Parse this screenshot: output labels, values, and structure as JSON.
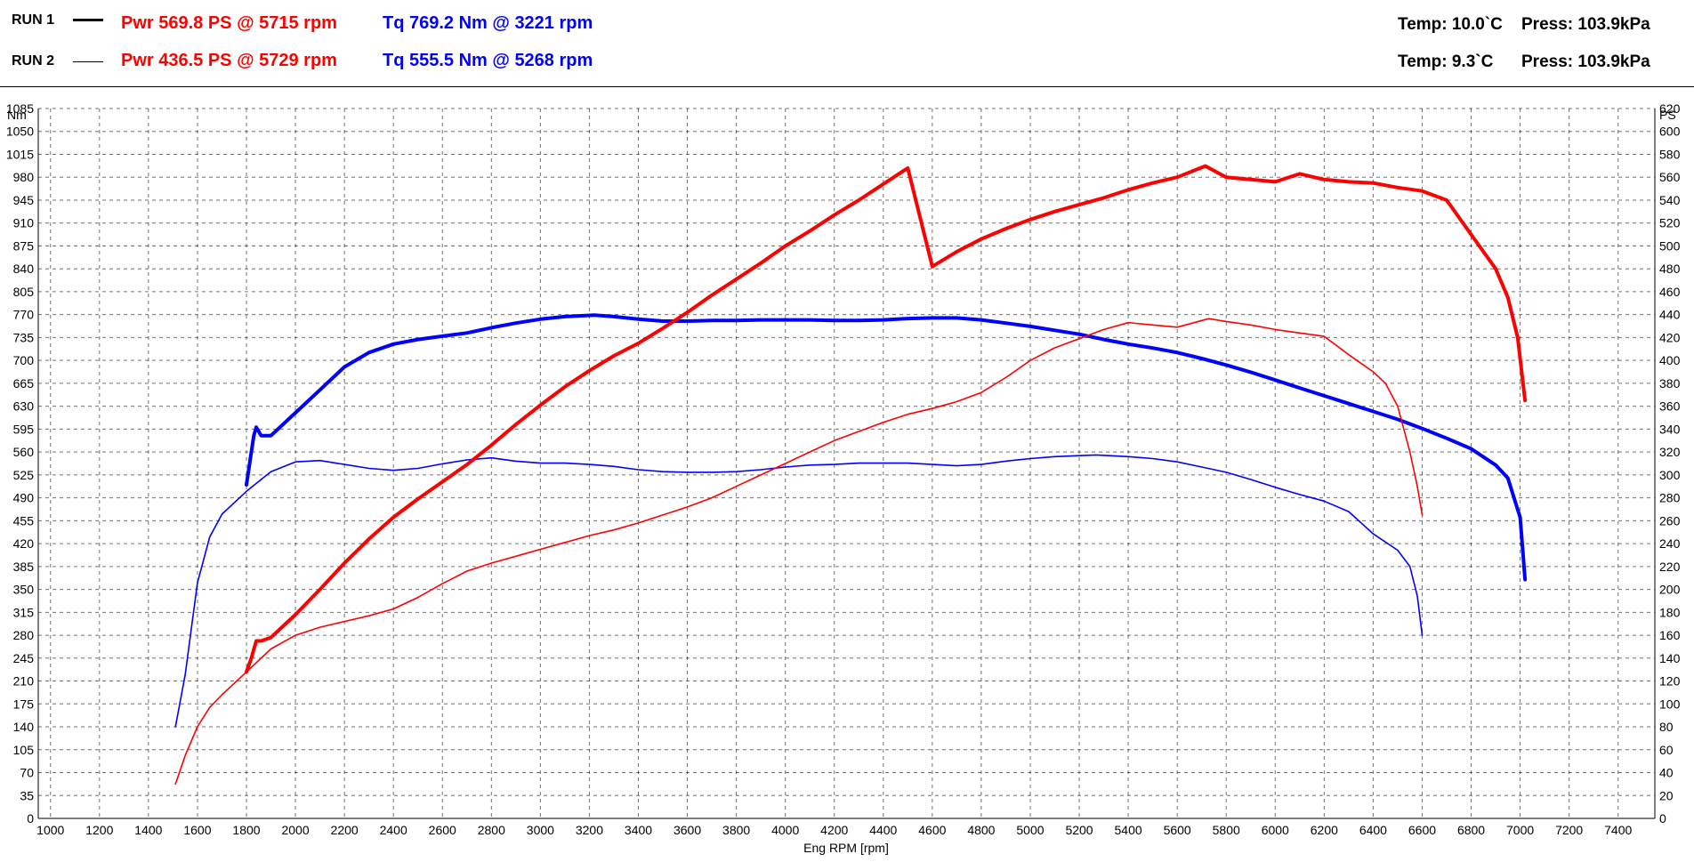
{
  "header": {
    "runs": [
      {
        "label": "RUN 1",
        "power": "Pwr  569.8 PS @ 5715 rpm",
        "torque": "Tq 769.2 Nm @ 3221 rpm",
        "temp": "Temp: 10.0`C",
        "press": "Press: 103.9kPa",
        "line_style": "thick"
      },
      {
        "label": "RUN 2",
        "power": "Pwr  436.5 PS @ 5729 rpm",
        "torque": "Tq 555.5 Nm @ 5268 rpm",
        "temp": "Temp: 9.3`C",
        "press": "Press: 103.9kPa",
        "line_style": "thin"
      }
    ]
  },
  "colors": {
    "power": "#ff0000",
    "torque": "#0000ff",
    "grid": "#000000",
    "background": "#ffffff"
  },
  "chart_data": {
    "type": "line",
    "xlabel": "Eng RPM [rpm]",
    "ylabel_left": "Nm",
    "ylabel_right": "PS",
    "xlim": [
      950,
      7550
    ],
    "ylim_left": [
      0,
      1085
    ],
    "ylim_right": [
      0,
      620
    ],
    "x_ticks": [
      1000,
      1200,
      1400,
      1600,
      1800,
      2000,
      2200,
      2400,
      2600,
      2800,
      3000,
      3200,
      3400,
      3600,
      3800,
      4000,
      4200,
      4400,
      4600,
      4800,
      5000,
      5200,
      5400,
      5600,
      5800,
      6000,
      6200,
      6400,
      6600,
      6800,
      7000,
      7200,
      7400
    ],
    "y_ticks_left": [
      0,
      35,
      70,
      105,
      140,
      175,
      210,
      245,
      280,
      315,
      350,
      385,
      420,
      455,
      490,
      525,
      560,
      595,
      630,
      665,
      700,
      735,
      770,
      805,
      840,
      875,
      910,
      945,
      980,
      1015,
      1050,
      1085
    ],
    "y_ticks_right": [
      0,
      20,
      40,
      60,
      80,
      100,
      120,
      140,
      160,
      180,
      200,
      220,
      240,
      260,
      280,
      300,
      320,
      340,
      360,
      380,
      400,
      420,
      440,
      460,
      480,
      500,
      520,
      540,
      560,
      580,
      600,
      620
    ],
    "grid": true,
    "series": [
      {
        "name": "RUN 1",
        "quantity": "torque",
        "axis": "left",
        "width": "thick",
        "points": [
          [
            1800,
            510
          ],
          [
            1820,
            560
          ],
          [
            1830,
            585
          ],
          [
            1840,
            598
          ],
          [
            1860,
            585
          ],
          [
            1900,
            585
          ],
          [
            2000,
            620
          ],
          [
            2100,
            655
          ],
          [
            2200,
            690
          ],
          [
            2300,
            712
          ],
          [
            2400,
            725
          ],
          [
            2500,
            732
          ],
          [
            2600,
            737
          ],
          [
            2700,
            742
          ],
          [
            2800,
            750
          ],
          [
            2900,
            757
          ],
          [
            3000,
            763
          ],
          [
            3100,
            767
          ],
          [
            3221,
            769.2
          ],
          [
            3300,
            767
          ],
          [
            3400,
            763
          ],
          [
            3500,
            760
          ],
          [
            3600,
            760
          ],
          [
            3700,
            761
          ],
          [
            3800,
            761
          ],
          [
            3900,
            762
          ],
          [
            4000,
            762
          ],
          [
            4100,
            762
          ],
          [
            4200,
            761
          ],
          [
            4300,
            761
          ],
          [
            4400,
            762
          ],
          [
            4500,
            764
          ],
          [
            4600,
            765
          ],
          [
            4700,
            765
          ],
          [
            4800,
            762
          ],
          [
            4900,
            757
          ],
          [
            5000,
            752
          ],
          [
            5100,
            746
          ],
          [
            5200,
            740
          ],
          [
            5300,
            732
          ],
          [
            5400,
            725
          ],
          [
            5500,
            719
          ],
          [
            5600,
            712
          ],
          [
            5700,
            703
          ],
          [
            5800,
            693
          ],
          [
            5900,
            682
          ],
          [
            6000,
            670
          ],
          [
            6100,
            658
          ],
          [
            6200,
            646
          ],
          [
            6300,
            634
          ],
          [
            6400,
            622
          ],
          [
            6500,
            610
          ],
          [
            6600,
            596
          ],
          [
            6700,
            581
          ],
          [
            6800,
            565
          ],
          [
            6900,
            540
          ],
          [
            6950,
            520
          ],
          [
            7000,
            460
          ],
          [
            7020,
            365
          ]
        ]
      },
      {
        "name": "RUN 2",
        "quantity": "torque",
        "axis": "left",
        "width": "thin",
        "points": [
          [
            1510,
            140
          ],
          [
            1550,
            220
          ],
          [
            1600,
            360
          ],
          [
            1650,
            430
          ],
          [
            1700,
            465
          ],
          [
            1800,
            500
          ],
          [
            1900,
            530
          ],
          [
            2000,
            545
          ],
          [
            2100,
            547
          ],
          [
            2200,
            541
          ],
          [
            2300,
            535
          ],
          [
            2400,
            532
          ],
          [
            2500,
            535
          ],
          [
            2600,
            542
          ],
          [
            2700,
            548
          ],
          [
            2800,
            551
          ],
          [
            2900,
            546
          ],
          [
            3000,
            543
          ],
          [
            3100,
            543
          ],
          [
            3200,
            541
          ],
          [
            3300,
            538
          ],
          [
            3400,
            533
          ],
          [
            3500,
            530
          ],
          [
            3600,
            529
          ],
          [
            3700,
            529
          ],
          [
            3800,
            530
          ],
          [
            3900,
            533
          ],
          [
            4000,
            537
          ],
          [
            4100,
            540
          ],
          [
            4200,
            541
          ],
          [
            4300,
            543
          ],
          [
            4400,
            543
          ],
          [
            4500,
            543
          ],
          [
            4600,
            541
          ],
          [
            4700,
            539
          ],
          [
            4800,
            541
          ],
          [
            4900,
            546
          ],
          [
            5000,
            550
          ],
          [
            5100,
            553
          ],
          [
            5268,
            555.5
          ],
          [
            5400,
            553
          ],
          [
            5500,
            550
          ],
          [
            5600,
            545
          ],
          [
            5700,
            537
          ],
          [
            5800,
            529
          ],
          [
            5900,
            518
          ],
          [
            6000,
            506
          ],
          [
            6100,
            495
          ],
          [
            6200,
            485
          ],
          [
            6300,
            469
          ],
          [
            6400,
            435
          ],
          [
            6500,
            410
          ],
          [
            6550,
            385
          ],
          [
            6580,
            340
          ],
          [
            6600,
            280
          ]
        ]
      },
      {
        "name": "RUN 1",
        "quantity": "power",
        "axis": "right",
        "width": "thick",
        "points": [
          [
            1800,
            128
          ],
          [
            1820,
            140
          ],
          [
            1840,
            155
          ],
          [
            1860,
            155
          ],
          [
            1900,
            158
          ],
          [
            2000,
            178
          ],
          [
            2100,
            200
          ],
          [
            2200,
            223
          ],
          [
            2300,
            244
          ],
          [
            2400,
            263
          ],
          [
            2500,
            279
          ],
          [
            2600,
            294
          ],
          [
            2700,
            309
          ],
          [
            2800,
            326
          ],
          [
            2900,
            344
          ],
          [
            3000,
            361
          ],
          [
            3100,
            377
          ],
          [
            3200,
            391
          ],
          [
            3300,
            404
          ],
          [
            3400,
            415
          ],
          [
            3500,
            428
          ],
          [
            3600,
            442
          ],
          [
            3700,
            457
          ],
          [
            3800,
            471
          ],
          [
            3900,
            485
          ],
          [
            4000,
            500
          ],
          [
            4100,
            513
          ],
          [
            4200,
            527
          ],
          [
            4300,
            540
          ],
          [
            4400,
            554
          ],
          [
            4500,
            568
          ],
          [
            4600,
            482
          ],
          [
            4700,
            495
          ],
          [
            4800,
            506
          ],
          [
            4900,
            515
          ],
          [
            5000,
            523
          ],
          [
            5100,
            530
          ],
          [
            5200,
            536
          ],
          [
            5300,
            542
          ],
          [
            5400,
            549
          ],
          [
            5500,
            555
          ],
          [
            5600,
            560
          ],
          [
            5715,
            569.8
          ],
          [
            5800,
            560
          ],
          [
            5900,
            558
          ],
          [
            6000,
            556
          ],
          [
            6100,
            563
          ],
          [
            6200,
            558
          ],
          [
            6300,
            556
          ],
          [
            6400,
            555
          ],
          [
            6500,
            551
          ],
          [
            6600,
            548
          ],
          [
            6700,
            540
          ],
          [
            6800,
            510
          ],
          [
            6900,
            480
          ],
          [
            6950,
            455
          ],
          [
            6990,
            420
          ],
          [
            7020,
            365
          ]
        ]
      },
      {
        "name": "RUN 2",
        "quantity": "power",
        "axis": "right",
        "width": "thin",
        "points": [
          [
            1510,
            30
          ],
          [
            1550,
            55
          ],
          [
            1600,
            80
          ],
          [
            1650,
            97
          ],
          [
            1700,
            108
          ],
          [
            1800,
            128
          ],
          [
            1900,
            148
          ],
          [
            2000,
            160
          ],
          [
            2100,
            167
          ],
          [
            2200,
            172
          ],
          [
            2300,
            177
          ],
          [
            2400,
            183
          ],
          [
            2500,
            193
          ],
          [
            2600,
            205
          ],
          [
            2700,
            216
          ],
          [
            2800,
            223
          ],
          [
            2900,
            229
          ],
          [
            3000,
            235
          ],
          [
            3100,
            241
          ],
          [
            3200,
            247
          ],
          [
            3300,
            252
          ],
          [
            3400,
            258
          ],
          [
            3500,
            265
          ],
          [
            3600,
            272
          ],
          [
            3700,
            280
          ],
          [
            3800,
            290
          ],
          [
            3900,
            300
          ],
          [
            4000,
            310
          ],
          [
            4100,
            320
          ],
          [
            4200,
            330
          ],
          [
            4300,
            338
          ],
          [
            4400,
            346
          ],
          [
            4500,
            353
          ],
          [
            4600,
            358
          ],
          [
            4700,
            364
          ],
          [
            4800,
            372
          ],
          [
            4900,
            385
          ],
          [
            5000,
            400
          ],
          [
            5100,
            411
          ],
          [
            5200,
            419
          ],
          [
            5300,
            427
          ],
          [
            5400,
            433
          ],
          [
            5500,
            431
          ],
          [
            5600,
            429
          ],
          [
            5729,
            436.5
          ],
          [
            5800,
            434
          ],
          [
            5900,
            431
          ],
          [
            6000,
            427
          ],
          [
            6100,
            424
          ],
          [
            6200,
            421
          ],
          [
            6300,
            405
          ],
          [
            6400,
            390
          ],
          [
            6450,
            380
          ],
          [
            6500,
            360
          ],
          [
            6550,
            320
          ],
          [
            6580,
            290
          ],
          [
            6600,
            265
          ]
        ]
      }
    ]
  }
}
